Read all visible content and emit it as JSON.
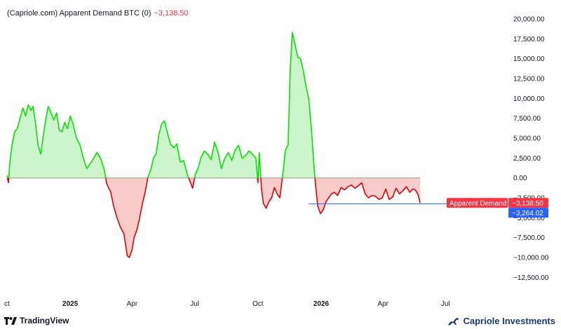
{
  "header": {
    "title": "(Capriole.com) Apparent Demand BTC (0)",
    "current_value": "−3,138.50"
  },
  "footer": {
    "brand": "TradingView",
    "company": "Capriole Investments"
  },
  "colors": {
    "positive_line": "#00e600",
    "positive_fill": "#ccf5cc",
    "negative_line": "#e60000",
    "negative_fill": "#f9cccc",
    "zero_line": "#8a9a7a",
    "ref_line": "#2962ff",
    "label_red": "#f23645",
    "label_blue": "#2962ff"
  },
  "chart_data": {
    "type": "area",
    "series": [
      {
        "name": "Apparent Demand",
        "x": [
          "2024-10-01",
          "2024-10-03",
          "2024-10-05",
          "2024-10-08",
          "2024-10-12",
          "2024-10-16",
          "2024-10-20",
          "2024-10-24",
          "2024-10-28",
          "2024-11-01",
          "2024-11-05",
          "2024-11-08",
          "2024-11-12",
          "2024-11-15",
          "2024-11-19",
          "2024-11-23",
          "2024-11-26",
          "2024-11-30",
          "2024-12-04",
          "2024-12-08",
          "2024-12-12",
          "2024-12-16",
          "2024-12-20",
          "2024-12-24",
          "2024-12-28",
          "2025-01-01",
          "2025-01-05",
          "2025-01-10",
          "2025-01-15",
          "2025-01-20",
          "2025-01-25",
          "2025-01-30",
          "2025-02-04",
          "2025-02-09",
          "2025-02-14",
          "2025-02-19",
          "2025-02-23",
          "2025-02-26",
          "2025-03-01",
          "2025-03-05",
          "2025-03-10",
          "2025-03-15",
          "2025-03-20",
          "2025-03-25",
          "2025-03-28",
          "2025-04-01",
          "2025-04-04",
          "2025-04-08",
          "2025-04-12",
          "2025-04-16",
          "2025-04-20",
          "2025-04-24",
          "2025-04-28",
          "2025-05-02",
          "2025-05-06",
          "2025-05-10",
          "2025-05-14",
          "2025-05-18",
          "2025-05-22",
          "2025-05-27",
          "2025-06-01",
          "2025-06-05",
          "2025-06-10",
          "2025-06-15",
          "2025-06-20",
          "2025-06-25",
          "2025-06-28",
          "2025-07-02",
          "2025-07-06",
          "2025-07-10",
          "2025-07-15",
          "2025-07-20",
          "2025-07-25",
          "2025-07-30",
          "2025-08-04",
          "2025-08-09",
          "2025-08-14",
          "2025-08-19",
          "2025-08-24",
          "2025-08-29",
          "2025-09-03",
          "2025-09-08",
          "2025-09-13",
          "2025-09-18",
          "2025-09-23",
          "2025-09-28",
          "2025-10-01",
          "2025-10-03",
          "2025-10-06",
          "2025-10-09",
          "2025-10-13",
          "2025-10-17",
          "2025-10-21",
          "2025-10-25",
          "2025-10-29",
          "2025-11-02",
          "2025-11-06",
          "2025-11-10",
          "2025-11-14",
          "2025-11-17",
          "2025-11-20",
          "2025-11-24",
          "2025-11-28",
          "2025-12-02",
          "2025-12-06",
          "2025-12-10",
          "2025-12-14",
          "2025-12-18",
          "2025-12-22",
          "2025-12-24",
          "2025-12-27",
          "2025-12-31",
          "2026-01-04",
          "2026-01-08",
          "2026-01-12",
          "2026-01-16",
          "2026-01-20",
          "2026-01-25",
          "2026-01-30",
          "2026-02-04",
          "2026-02-09",
          "2026-02-14",
          "2026-02-19",
          "2026-02-24",
          "2026-03-01",
          "2026-03-06",
          "2026-03-11",
          "2026-03-16",
          "2026-03-21",
          "2026-03-26",
          "2026-03-31",
          "2026-04-05",
          "2026-04-10",
          "2026-04-15",
          "2026-04-20",
          "2026-04-25",
          "2026-04-30",
          "2026-05-05",
          "2026-05-10",
          "2026-05-14",
          "2026-05-18",
          "2026-05-22",
          "2026-05-25"
        ],
        "values": [
          300,
          -600,
          1800,
          4000,
          5800,
          6200,
          7500,
          8800,
          7800,
          9200,
          8500,
          9000,
          6500,
          4200,
          3000,
          5500,
          7200,
          9000,
          8200,
          7300,
          8200,
          6000,
          5800,
          7000,
          6200,
          7800,
          6800,
          5000,
          4200,
          2500,
          1200,
          1800,
          2500,
          3200,
          2500,
          1200,
          -700,
          -1300,
          -1800,
          -3500,
          -5000,
          -6200,
          -7000,
          -9800,
          -10000,
          -9000,
          -7500,
          -6500,
          -5000,
          -3200,
          -1800,
          100,
          1000,
          2500,
          3000,
          5500,
          6800,
          7200,
          5800,
          4200,
          3800,
          4300,
          2000,
          2200,
          500,
          -600,
          -1300,
          500,
          1200,
          2500,
          3400,
          3000,
          2300,
          4500,
          3200,
          1200,
          2500,
          3200,
          2200,
          3500,
          4100,
          2500,
          2800,
          3400,
          3000,
          2500,
          -600,
          3200,
          -1200,
          -3200,
          -3800,
          -3000,
          -2500,
          -1200,
          -2000,
          -2500,
          300,
          3500,
          4200,
          13500,
          18300,
          16800,
          15200,
          15000,
          13500,
          11500,
          10000,
          6000,
          900,
          -1000,
          -3500,
          -4500,
          -4000,
          -3000,
          -2500,
          -2000,
          -1800,
          -2200,
          -1200,
          -1500,
          -1100,
          -900,
          -1300,
          -1000,
          -600,
          -2000,
          -2500,
          -2200,
          -2300,
          -2700,
          -2500,
          -1400,
          -2700,
          -2400,
          -1300,
          -2000,
          -1600,
          -1100,
          -1800,
          -1400,
          -1500,
          -2100,
          -3138.5
        ]
      }
    ],
    "title": "(Capriole.com) Apparent Demand BTC (0)",
    "xlabel": "",
    "ylabel": "",
    "xlim": [
      "2024-10-01",
      "2026-07-20"
    ],
    "ylim": [
      -14500,
      20800
    ],
    "y_ticks": [
      20000,
      17500,
      15000,
      12500,
      10000,
      7500,
      5000,
      2500,
      0,
      -2500,
      -5000,
      -7500,
      -10000,
      -12500
    ],
    "y_tick_labels": [
      "20,000.00",
      "17,500.00",
      "15,000.00",
      "12,500.00",
      "10,000.00",
      "7,500.00",
      "5,000.00",
      "2,500.00",
      "0.00",
      "−2,500.00",
      "−5,000.00",
      "−7,500.00",
      "−10,000.00",
      "−12,500.00"
    ],
    "x_ticks": [
      {
        "date": "2024-10-01",
        "label": "ct",
        "bold": false
      },
      {
        "date": "2025-01-01",
        "label": "2025",
        "bold": true
      },
      {
        "date": "2025-04-01",
        "label": "Apr",
        "bold": false
      },
      {
        "date": "2025-07-01",
        "label": "Jul",
        "bold": false
      },
      {
        "date": "2025-10-01",
        "label": "Oct",
        "bold": false
      },
      {
        "date": "2026-01-01",
        "label": "2026",
        "bold": true
      },
      {
        "date": "2026-04-01",
        "label": "Apr",
        "bold": false
      },
      {
        "date": "2026-07-01",
        "label": "Jul",
        "bold": false
      }
    ],
    "reference_line": {
      "value": -3264.02,
      "label": "−3,264.02",
      "start": "2025-12-14"
    },
    "last_value_label": {
      "name": "Apparent Demand",
      "value": "−3,138.50"
    },
    "grid": false,
    "legend": "none"
  }
}
